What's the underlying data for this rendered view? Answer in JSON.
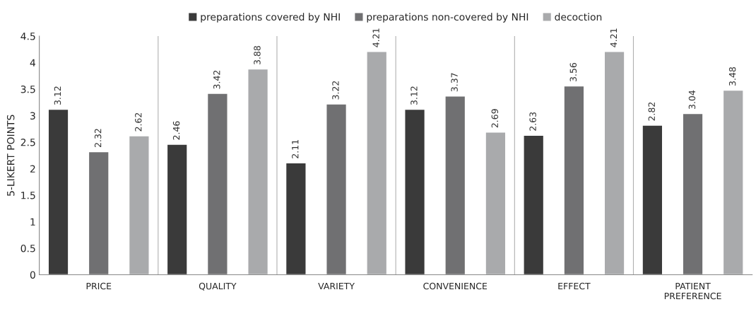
{
  "chart_data": {
    "type": "bar",
    "ylabel": "5-LIKERT POINTS",
    "categories": [
      "PRICE",
      "QUALITY",
      "VARIETY",
      "CONVENIENCE",
      "EFFECT",
      "PATIENT\nPREFERENCE"
    ],
    "series": [
      {
        "name": "preparations covered by NHI",
        "color": "#3a3a3a",
        "values": [
          3.12,
          2.46,
          2.11,
          3.12,
          2.63,
          2.82
        ]
      },
      {
        "name": "preparations non-covered by NHI",
        "color": "#707072",
        "values": [
          2.32,
          3.42,
          3.22,
          3.37,
          3.56,
          3.04
        ]
      },
      {
        "name": "decoction",
        "color": "#a9aaac",
        "values": [
          2.62,
          3.88,
          4.21,
          2.69,
          4.21,
          3.48
        ]
      }
    ],
    "ylim": [
      0,
      4.5
    ],
    "yticks": [
      0,
      0.5,
      1,
      1.5,
      2,
      2.5,
      3,
      3.5,
      4,
      4.5
    ],
    "data_labels": true,
    "grid": "x",
    "legend": "top"
  }
}
